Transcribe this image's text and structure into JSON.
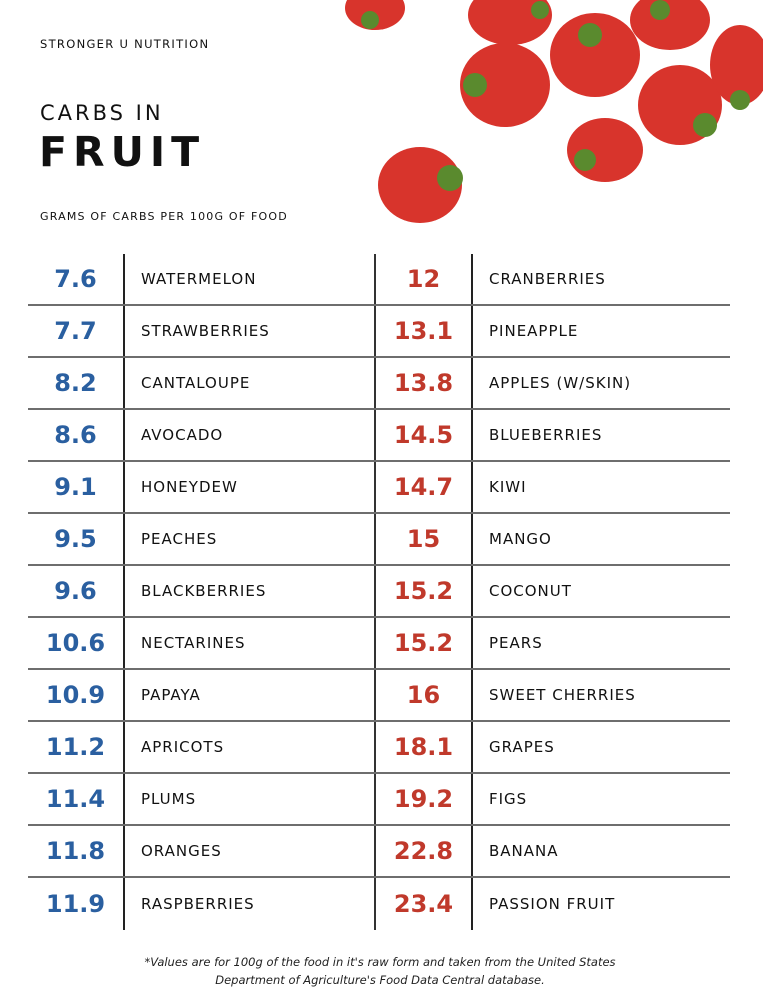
{
  "header": {
    "brand": "STRONGER U NUTRITION",
    "title_line1": "CARBS IN",
    "title_line2": "FRUIT",
    "subtitle": "GRAMS OF CARBS PER 100G OF FOOD"
  },
  "colors": {
    "low": "#2a5fa0",
    "high": "#c0392b",
    "strawberry": "#d8342c"
  },
  "left": [
    {
      "value": "7.6",
      "name": "WATERMELON"
    },
    {
      "value": "7.7",
      "name": "STRAWBERRIES"
    },
    {
      "value": "8.2",
      "name": "CANTALOUPE"
    },
    {
      "value": "8.6",
      "name": "AVOCADO"
    },
    {
      "value": "9.1",
      "name": "HONEYDEW"
    },
    {
      "value": "9.5",
      "name": "PEACHES"
    },
    {
      "value": "9.6",
      "name": "BLACKBERRIES"
    },
    {
      "value": "10.6",
      "name": "NECTARINES"
    },
    {
      "value": "10.9",
      "name": "PAPAYA"
    },
    {
      "value": "11.2",
      "name": "APRICOTS"
    },
    {
      "value": "11.4",
      "name": "PLUMS"
    },
    {
      "value": "11.8",
      "name": "ORANGES"
    },
    {
      "value": "11.9",
      "name": "RASPBERRIES"
    }
  ],
  "right": [
    {
      "value": "12",
      "name": "CRANBERRIES"
    },
    {
      "value": "13.1",
      "name": "PINEAPPLE"
    },
    {
      "value": "13.8",
      "name": "APPLES (W/SKIN)"
    },
    {
      "value": "14.5",
      "name": "BLUEBERRIES"
    },
    {
      "value": "14.7",
      "name": "KIWI"
    },
    {
      "value": "15",
      "name": "MANGO"
    },
    {
      "value": "15.2",
      "name": "COCONUT"
    },
    {
      "value": "15.2",
      "name": "PEARS"
    },
    {
      "value": "16",
      "name": "SWEET CHERRIES"
    },
    {
      "value": "18.1",
      "name": "GRAPES"
    },
    {
      "value": "19.2",
      "name": "FIGS"
    },
    {
      "value": "22.8",
      "name": "BANANA"
    },
    {
      "value": "23.4",
      "name": "PASSION FRUIT"
    }
  ],
  "footnote": {
    "line1": "*Values are for 100g of the food in it's raw form and taken from the United States",
    "line2": "Department of Agriculture's Food Data Central database."
  }
}
